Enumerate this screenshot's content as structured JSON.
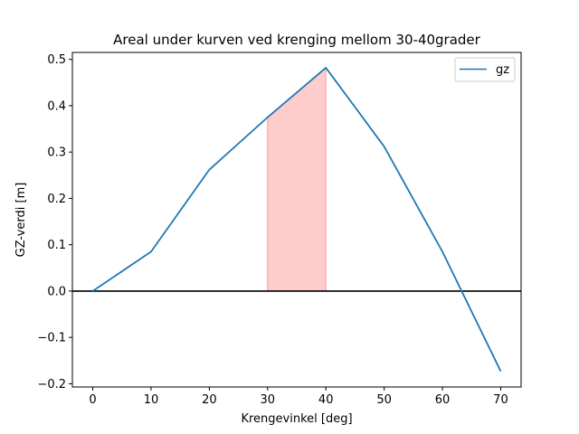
{
  "chart_data": {
    "type": "line",
    "title": "Areal under kurven ved krenging mellom 30-40grader",
    "xlabel": "Krengevinkel [deg]",
    "ylabel": "GZ-verdi [m]",
    "xlim": [
      -3.5,
      73.5
    ],
    "ylim": [
      -0.207,
      0.515
    ],
    "xticks": [
      0,
      10,
      20,
      30,
      40,
      50,
      60,
      70
    ],
    "yticks": [
      -0.2,
      -0.1,
      0.0,
      0.1,
      0.2,
      0.3,
      0.4,
      0.5
    ],
    "ytick_labels": [
      "−0.2",
      "−0.1",
      "0.0",
      "0.1",
      "0.2",
      "0.3",
      "0.4",
      "0.5"
    ],
    "grid": false,
    "legend": "top-right",
    "series": [
      {
        "name": "gz",
        "color": "#1f77b4",
        "x": [
          0,
          10,
          20,
          30,
          40,
          50,
          60,
          70
        ],
        "values": [
          0.0,
          0.085,
          0.262,
          0.375,
          0.482,
          0.312,
          0.085,
          -0.173
        ]
      }
    ],
    "shaded_region": {
      "x_from": 30,
      "x_to": 40,
      "color": "#ffcccc"
    },
    "hline": {
      "y": 0.0,
      "color": "#000000"
    }
  }
}
